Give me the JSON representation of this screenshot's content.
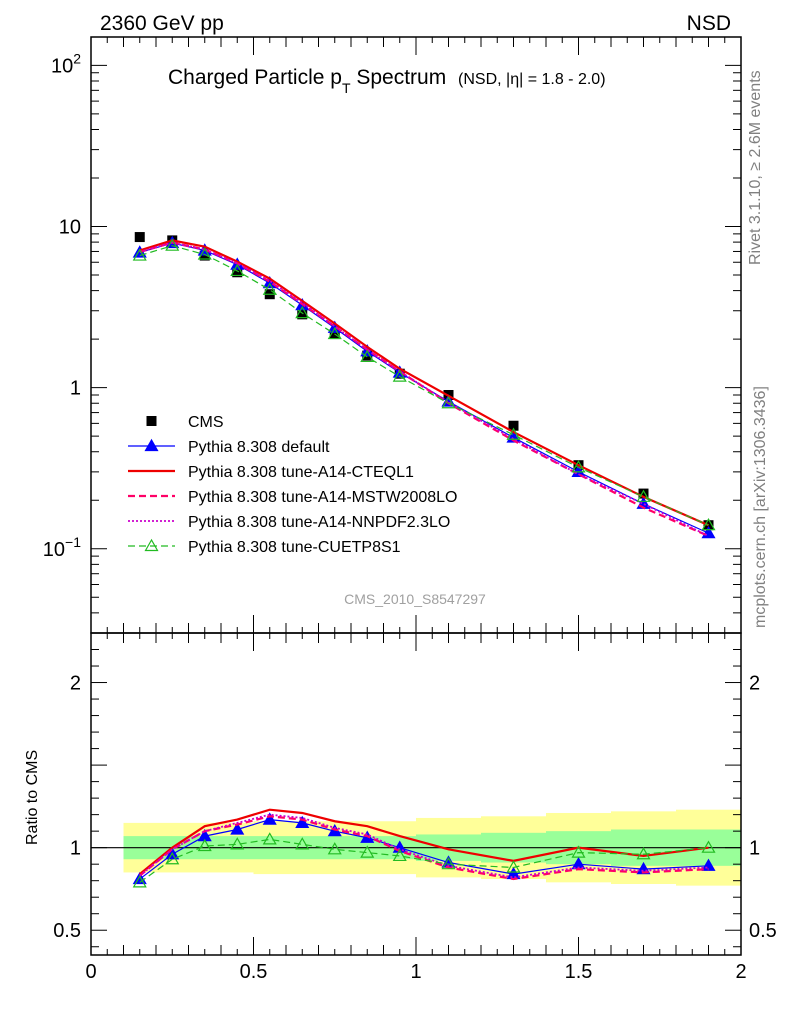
{
  "header": {
    "left": "2360 GeV pp",
    "right": "NSD"
  },
  "side_labels": {
    "rivet": "Rivet 3.1.10, ≥ 2.6M events",
    "mcplots": "mcplots.cern.ch [arXiv:1306.3436]"
  },
  "chart_data": {
    "type": "scatter",
    "title_main": "Charged Particle p",
    "title_sub": "T",
    "title_rest": " Spectrum",
    "title_extra": "(NSD, |η| = 1.8 - 2.0)",
    "watermark": "CMS_2010_S8547297",
    "ratio_ylabel": "Ratio to CMS",
    "main_ylog": true,
    "main_ylim": [
      0.03,
      150
    ],
    "ratio_ylim": [
      0.35,
      2.3
    ],
    "xlim": [
      0,
      2.0
    ],
    "main_yticks": [
      {
        "v": 100,
        "base": "10",
        "exp": "2"
      },
      {
        "v": 10,
        "base": "10",
        "exp": ""
      },
      {
        "v": 1,
        "base": "1",
        "exp": ""
      },
      {
        "v": 0.1,
        "base": "10",
        "exp": "−1"
      }
    ],
    "ratio_yticks": [
      {
        "v": 2,
        "label": "2"
      },
      {
        "v": 1,
        "label": "1"
      },
      {
        "v": 0.5,
        "label": "0.5"
      }
    ],
    "xticks": [
      {
        "v": 0,
        "label": "0"
      },
      {
        "v": 0.5,
        "label": "0.5"
      },
      {
        "v": 1,
        "label": "1"
      },
      {
        "v": 1.5,
        "label": "1.5"
      },
      {
        "v": 2,
        "label": "2"
      }
    ],
    "x": [
      0.15,
      0.25,
      0.35,
      0.45,
      0.55,
      0.65,
      0.75,
      0.85,
      0.95,
      1.1,
      1.3,
      1.5,
      1.7,
      1.9
    ],
    "bin_edges": [
      0.1,
      0.2,
      0.3,
      0.4,
      0.5,
      0.6,
      0.7,
      0.8,
      0.9,
      1.0,
      1.2,
      1.4,
      1.6,
      1.8,
      2.0
    ],
    "band_green": [
      0.07,
      0.07,
      0.07,
      0.07,
      0.07,
      0.07,
      0.07,
      0.07,
      0.07,
      0.08,
      0.09,
      0.1,
      0.11,
      0.11
    ],
    "band_yellow": [
      0.15,
      0.15,
      0.15,
      0.15,
      0.16,
      0.16,
      0.16,
      0.16,
      0.16,
      0.18,
      0.19,
      0.21,
      0.22,
      0.23
    ],
    "series": [
      {
        "name": "CMS",
        "color": "#000000",
        "style": "data",
        "values": [
          8.6,
          8.2,
          6.6,
          5.2,
          3.8,
          2.85,
          2.15,
          1.58,
          1.22,
          0.9,
          0.58,
          0.33,
          0.22,
          0.14
        ],
        "ratio": [
          1,
          1,
          1,
          1,
          1,
          1,
          1,
          1,
          1,
          1,
          1,
          1,
          1,
          1
        ]
      },
      {
        "name": "Pythia 8.308 default",
        "color": "#0000ff",
        "style": "solid-tri",
        "width": 1.2,
        "values": [
          6.9,
          7.9,
          7.1,
          5.8,
          4.45,
          3.25,
          2.35,
          1.68,
          1.24,
          0.82,
          0.49,
          0.3,
          0.19,
          0.125
        ],
        "ratio": [
          0.81,
          0.96,
          1.07,
          1.11,
          1.17,
          1.15,
          1.1,
          1.06,
          1.0,
          0.91,
          0.84,
          0.9,
          0.87,
          0.89
        ]
      },
      {
        "name": "Pythia 8.308 tune-A14-CTEQL1",
        "color": "#ee0000",
        "style": "solid",
        "width": 2.2,
        "values": [
          7.1,
          8.2,
          7.5,
          6.05,
          4.75,
          3.45,
          2.5,
          1.79,
          1.31,
          0.89,
          0.53,
          0.33,
          0.21,
          0.14
        ],
        "ratio": [
          0.84,
          1.0,
          1.13,
          1.17,
          1.23,
          1.21,
          1.16,
          1.13,
          1.07,
          0.99,
          0.92,
          1.0,
          0.95,
          1.0
        ]
      },
      {
        "name": "Pythia 8.308 tune-A14-MSTW2008LO",
        "color": "#ff0066",
        "style": "dashed",
        "width": 2.2,
        "values": [
          6.95,
          7.95,
          7.2,
          5.9,
          4.55,
          3.3,
          2.4,
          1.72,
          1.26,
          0.8,
          0.47,
          0.29,
          0.18,
          0.12
        ],
        "ratio": [
          0.83,
          0.99,
          1.1,
          1.14,
          1.19,
          1.17,
          1.11,
          1.07,
          0.98,
          0.88,
          0.81,
          0.87,
          0.85,
          0.87
        ]
      },
      {
        "name": "Pythia 8.308 tune-A14-NNPDF2.3LO",
        "color": "#cc00cc",
        "style": "dotted",
        "width": 1.8,
        "values": [
          6.95,
          7.95,
          7.2,
          5.9,
          4.6,
          3.35,
          2.4,
          1.72,
          1.26,
          0.81,
          0.48,
          0.29,
          0.19,
          0.12
        ],
        "ratio": [
          0.83,
          0.99,
          1.1,
          1.15,
          1.2,
          1.18,
          1.12,
          1.08,
          0.99,
          0.89,
          0.82,
          0.88,
          0.86,
          0.88
        ]
      },
      {
        "name": "Pythia 8.308 tune-CUETP8S1",
        "color": "#22bb22",
        "style": "dashed-opentri",
        "width": 1.2,
        "values": [
          6.6,
          7.6,
          6.7,
          5.3,
          4.05,
          2.9,
          2.15,
          1.55,
          1.17,
          0.8,
          0.51,
          0.32,
          0.21,
          0.14
        ],
        "ratio": [
          0.79,
          0.93,
          1.01,
          1.02,
          1.05,
          1.02,
          0.99,
          0.97,
          0.95,
          0.9,
          0.88,
          0.97,
          0.96,
          1.0
        ]
      }
    ]
  }
}
